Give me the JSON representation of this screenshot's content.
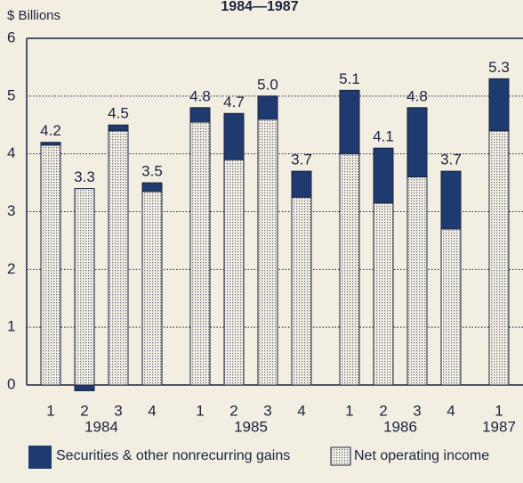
{
  "chart_data": {
    "type": "stacked-bar",
    "title": "1984—1987",
    "y_label": "$ Billions",
    "categories": [
      "1",
      "2",
      "3",
      "4",
      "1",
      "2",
      "3",
      "4",
      "1",
      "2",
      "3",
      "4",
      "1"
    ],
    "years": [
      "1984",
      "1985",
      "1986",
      "1987"
    ],
    "series": [
      {
        "name": "Net operating income",
        "color": "#f6f1e6",
        "pattern": "dotted",
        "values": [
          4.15,
          3.4,
          4.4,
          3.35,
          4.55,
          3.9,
          4.6,
          3.25,
          4.0,
          3.15,
          3.6,
          2.7,
          4.4
        ]
      },
      {
        "name": "Securities & other nonrecurring gains",
        "color": "#1f3a6e",
        "values": [
          0.05,
          -0.1,
          0.1,
          0.15,
          0.25,
          0.8,
          0.4,
          0.45,
          1.1,
          0.95,
          1.2,
          1.0,
          0.9
        ]
      }
    ],
    "total_labels": [
      "4.2",
      "3.3",
      "4.5",
      "3.5",
      "4.8",
      "4.7",
      "5.0",
      "3.7",
      "5.1",
      "4.1",
      "4.8",
      "3.7",
      "5.3"
    ],
    "ylim": [
      0,
      6
    ],
    "yticks": [
      0,
      1,
      2,
      3,
      4,
      5,
      6
    ],
    "grid": true
  }
}
